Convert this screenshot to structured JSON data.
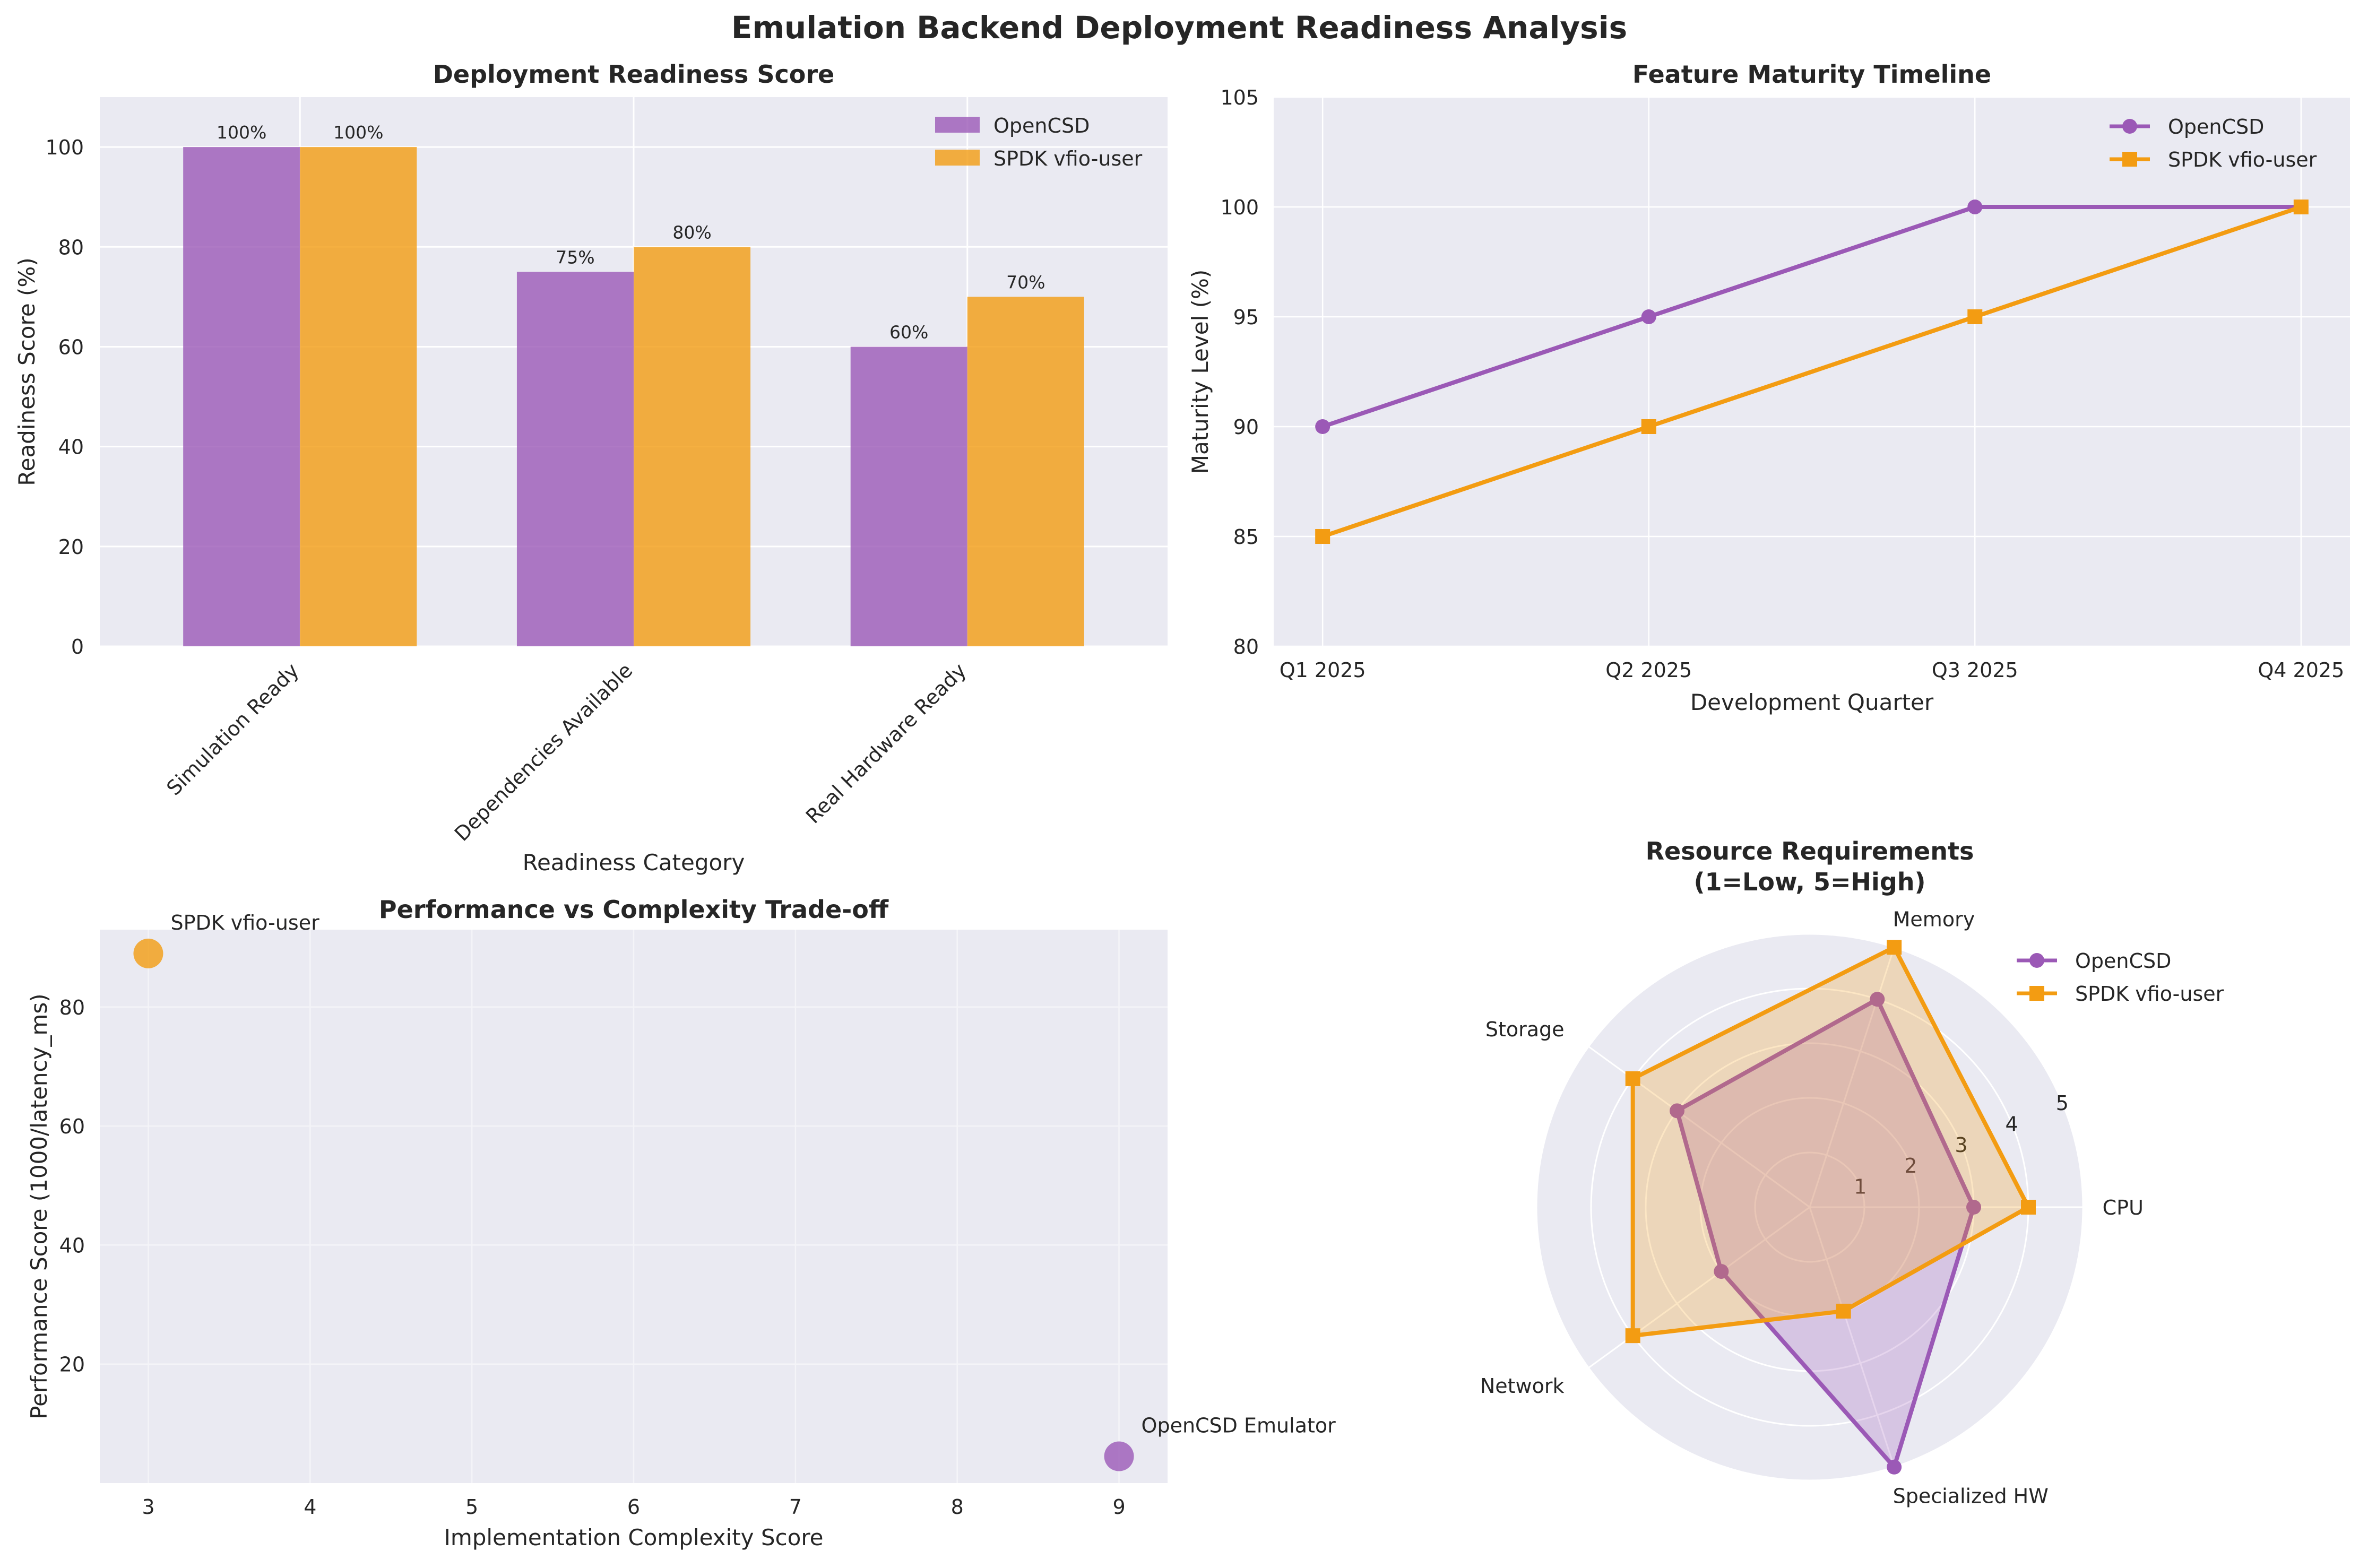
{
  "suptitle": "Emulation Backend Deployment Readiness Analysis",
  "colors": {
    "opencsd": "#9b59b6",
    "spdk": "#f39c12",
    "panel_bg": "#eaeaf2",
    "grid": "#ffffff",
    "text": "#262626"
  },
  "chart_data": [
    {
      "id": "readiness",
      "type": "bar",
      "title": "Deployment Readiness Score",
      "xlabel": "Readiness Category",
      "ylabel": "Readiness Score (%)",
      "categories": [
        "Simulation Ready",
        "Dependencies Available",
        "Real Hardware Ready"
      ],
      "series": [
        {
          "name": "OpenCSD",
          "values": [
            100,
            75,
            60
          ],
          "labels": [
            "100%",
            "75%",
            "60%"
          ]
        },
        {
          "name": "SPDK vfio-user",
          "values": [
            100,
            80,
            70
          ],
          "labels": [
            "100%",
            "80%",
            "70%"
          ]
        }
      ],
      "ylim": [
        0,
        110
      ],
      "yticks": [
        0,
        20,
        40,
        60,
        80,
        100
      ],
      "legend": "top-right",
      "grid": true
    },
    {
      "id": "timeline",
      "type": "line",
      "title": "Feature Maturity Timeline",
      "xlabel": "Development Quarter",
      "ylabel": "Maturity Level (%)",
      "categories": [
        "Q1 2025",
        "Q2 2025",
        "Q3 2025",
        "Q4 2025"
      ],
      "series": [
        {
          "name": "OpenCSD",
          "values": [
            90,
            95,
            100,
            100
          ],
          "marker": "circle"
        },
        {
          "name": "SPDK vfio-user",
          "values": [
            85,
            90,
            95,
            100
          ],
          "marker": "square"
        }
      ],
      "ylim": [
        80,
        105
      ],
      "yticks": [
        80,
        85,
        90,
        95,
        100,
        105
      ],
      "legend": "top-right",
      "grid": true
    },
    {
      "id": "tradeoff",
      "type": "scatter",
      "title": "Performance vs Complexity Trade-off",
      "xlabel": "Implementation Complexity Score",
      "ylabel": "Performance Score (1000/latency_ms)",
      "points": [
        {
          "name": "SPDK vfio-user",
          "x": 3,
          "y": 89
        },
        {
          "name": "OpenCSD Emulator",
          "x": 9,
          "y": 4.5
        }
      ],
      "xlim": [
        2.7,
        9.3
      ],
      "ylim": [
        0,
        93
      ],
      "xticks": [
        3,
        4,
        5,
        6,
        7,
        8,
        9
      ],
      "yticks": [
        20,
        40,
        60,
        80
      ],
      "grid": true
    },
    {
      "id": "resources",
      "type": "radar",
      "title": "Resource Requirements\n(1=Low, 5=High)",
      "axes": [
        "CPU",
        "Memory",
        "Storage",
        "Network",
        "Specialized HW"
      ],
      "series": [
        {
          "name": "OpenCSD",
          "values": [
            3,
            4,
            3,
            2,
            5
          ],
          "marker": "circle"
        },
        {
          "name": "SPDK vfio-user",
          "values": [
            4,
            5,
            4,
            4,
            2
          ],
          "marker": "square"
        }
      ],
      "rmax": 5,
      "rticks": [
        1,
        2,
        3,
        4,
        5
      ],
      "legend": "upper-right-outside"
    }
  ]
}
